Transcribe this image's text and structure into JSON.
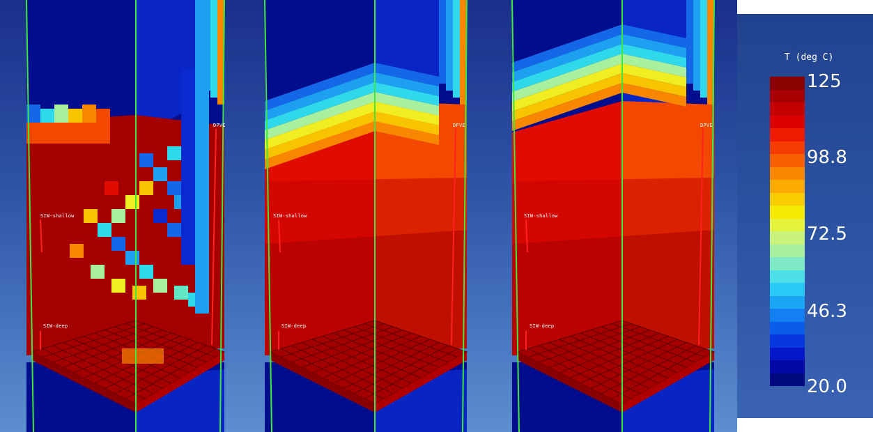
{
  "panels": [
    {
      "name": "left",
      "labels": {
        "shallow": "SIW-shallow",
        "deep": "SIW-deep",
        "dpve": "DPVE"
      }
    },
    {
      "name": "middle",
      "labels": {
        "shallow": "SIW-shallow",
        "deep": "SIW-deep",
        "dpve": "DPVE"
      }
    },
    {
      "name": "right",
      "labels": {
        "shallow": "SIW-shallow",
        "deep": "SIW-deep",
        "dpve": "DPVE"
      }
    }
  ],
  "legend": {
    "title": "T (deg C)",
    "ticks": [
      "125",
      "98.8",
      "72.5",
      "46.3",
      "20.0"
    ],
    "colors": [
      "#8b0000",
      "#a80000",
      "#c40000",
      "#dd0000",
      "#ef1b00",
      "#f43b00",
      "#f86000",
      "#fb8600",
      "#fcaa00",
      "#f9cd00",
      "#f3ea00",
      "#e6f33d",
      "#c8f27a",
      "#a9efa0",
      "#7fe8c5",
      "#4ddfe6",
      "#2ac8f5",
      "#1aa5f5",
      "#1280f0",
      "#0c5ceb",
      "#0738df",
      "#0418c8",
      "#0008a6",
      "#000a80"
    ]
  }
}
